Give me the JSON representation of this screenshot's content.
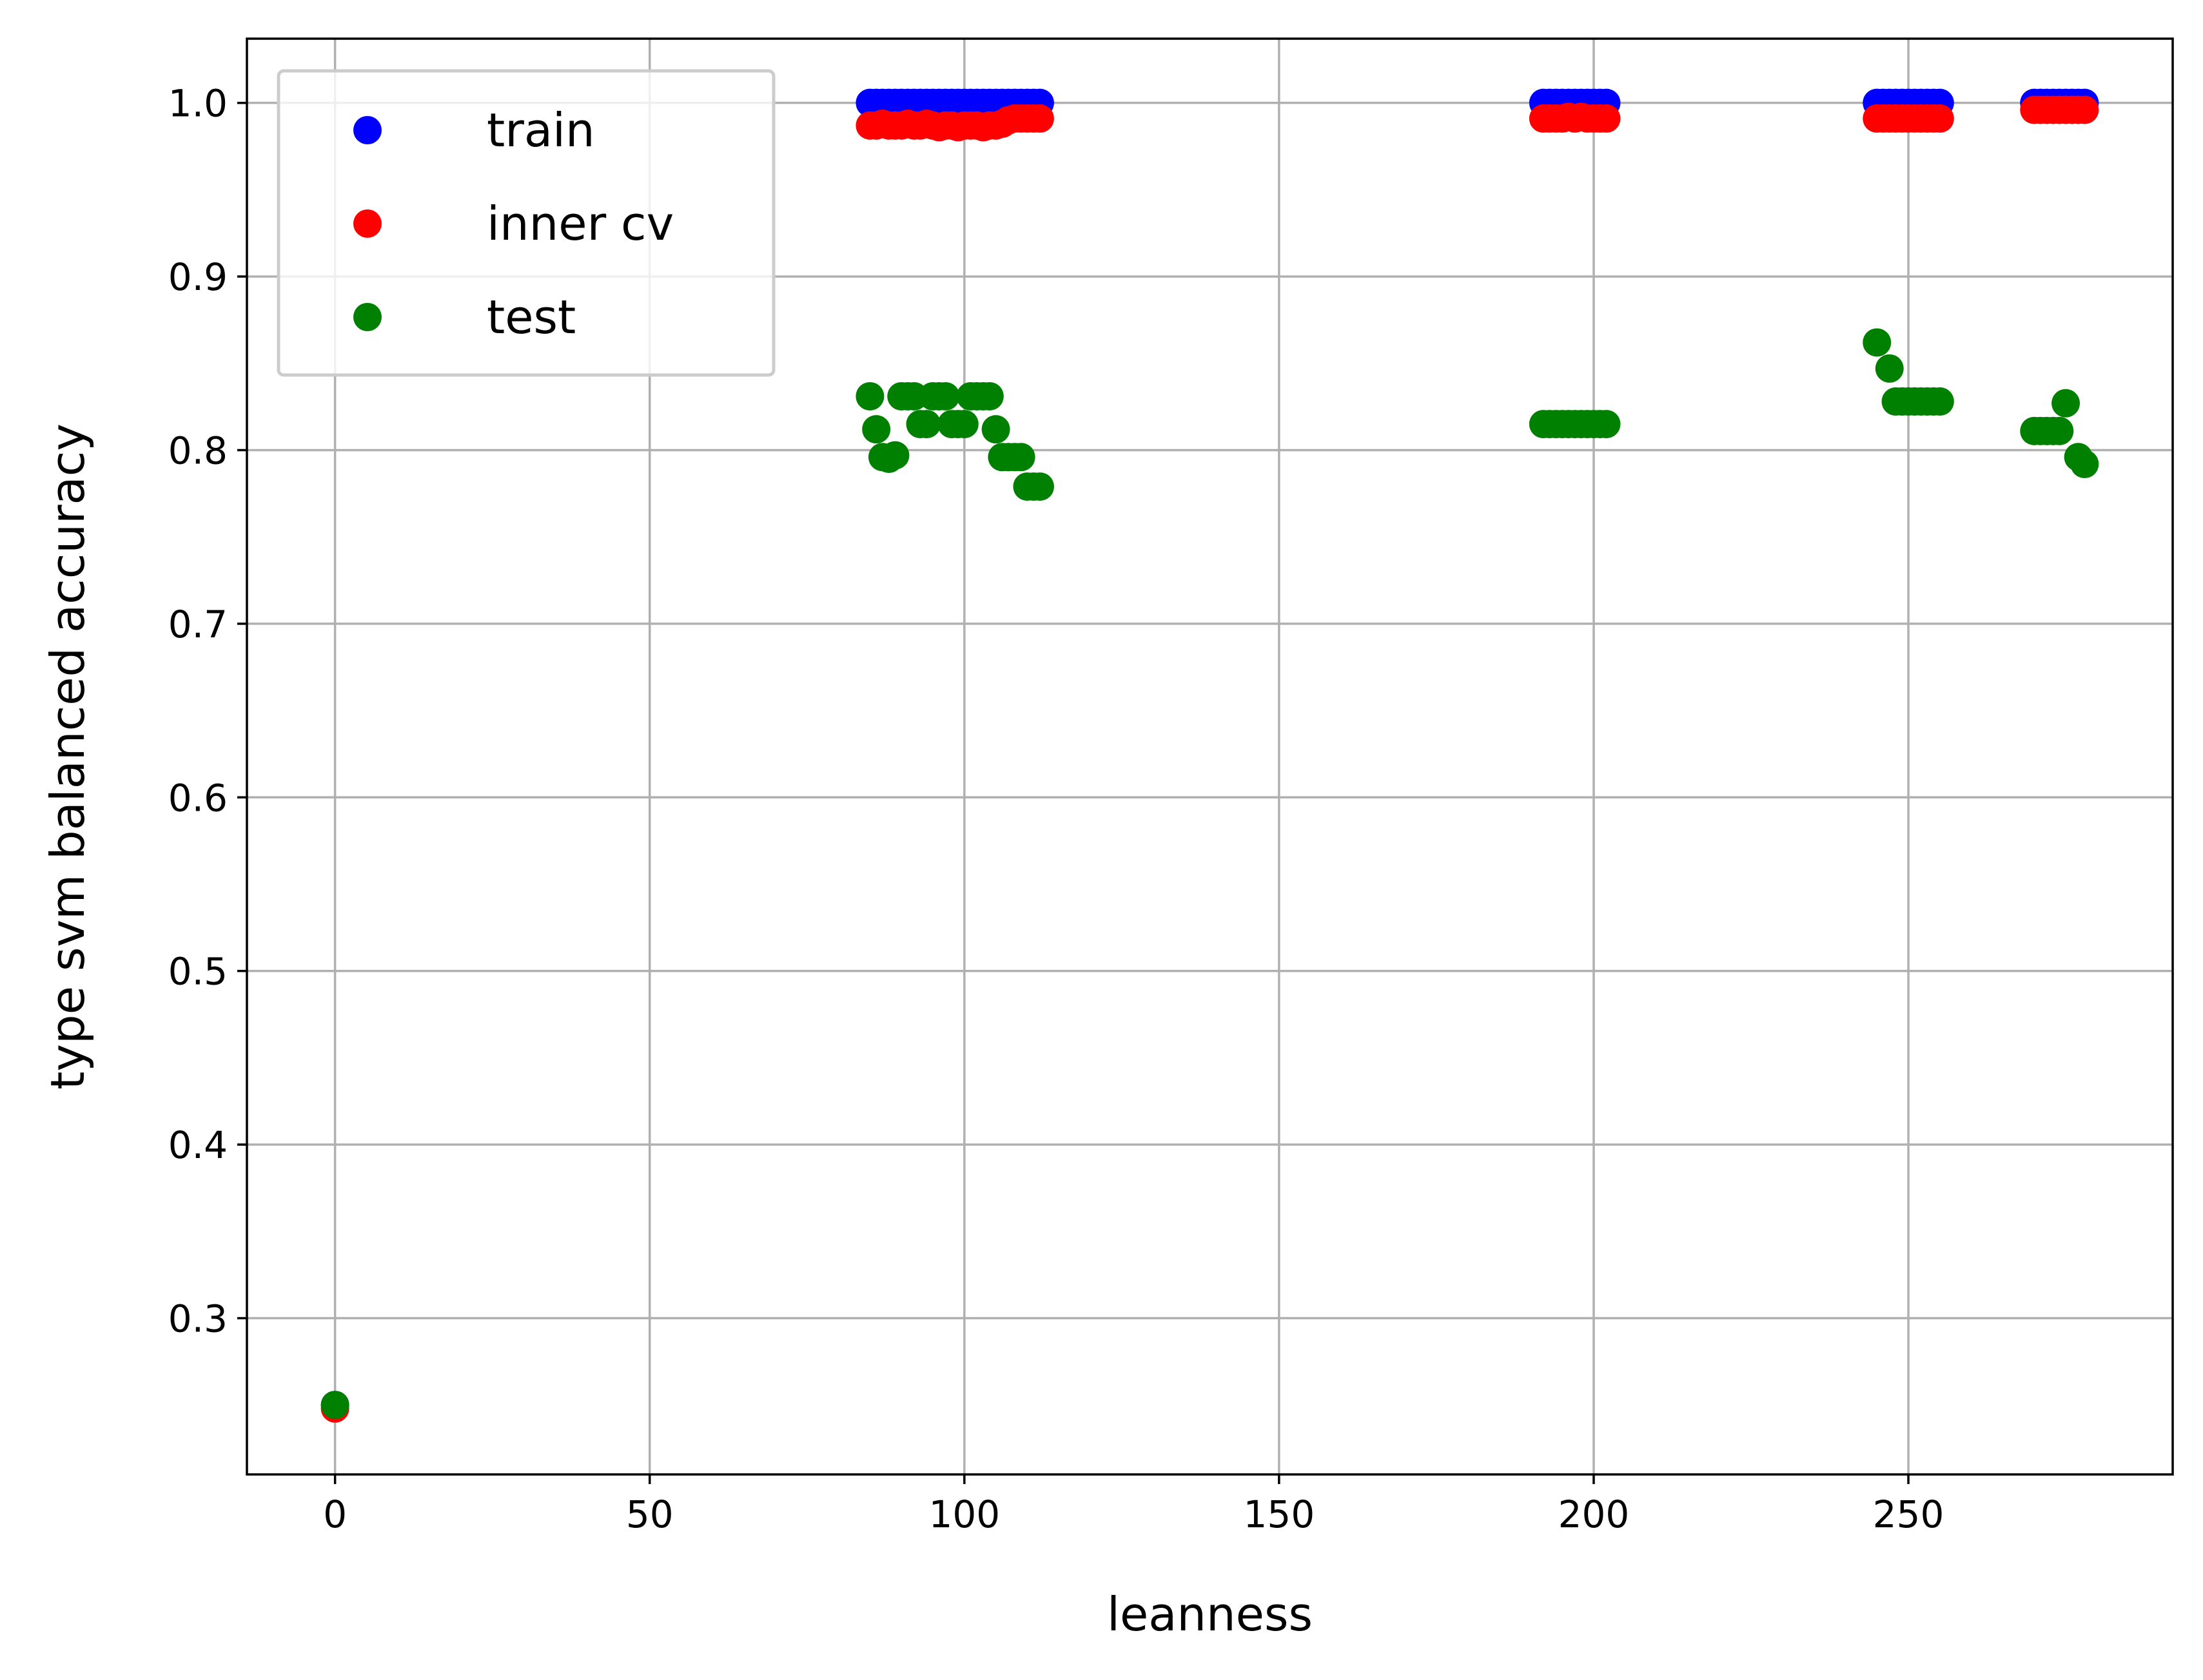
{
  "chart_data": {
    "type": "scatter",
    "xlabel": "leanness",
    "ylabel": "type svm balanced accuracy",
    "xlim": [
      -14,
      292
    ],
    "ylim": [
      0.21,
      1.037
    ],
    "xticks": [
      0,
      50,
      100,
      150,
      200,
      250
    ],
    "xtick_labels": [
      "0",
      "50",
      "100",
      "150",
      "200",
      "250"
    ],
    "yticks": [
      0.3,
      0.4,
      0.5,
      0.6,
      0.7,
      0.8,
      0.9,
      1.0
    ],
    "ytick_labels": [
      "0.3",
      "0.4",
      "0.5",
      "0.6",
      "0.7",
      "0.8",
      "0.9",
      "1.0"
    ],
    "grid": true,
    "legend_position": "upper-left",
    "series": [
      {
        "name": "train",
        "color": "#0000ff",
        "points": [
          [
            0,
            0.25
          ],
          [
            85,
            1.0
          ],
          [
            86,
            1.0
          ],
          [
            87,
            1.0
          ],
          [
            88,
            1.0
          ],
          [
            89,
            1.0
          ],
          [
            90,
            1.0
          ],
          [
            91,
            1.0
          ],
          [
            92,
            1.0
          ],
          [
            93,
            1.0
          ],
          [
            94,
            1.0
          ],
          [
            95,
            1.0
          ],
          [
            96,
            1.0
          ],
          [
            97,
            1.0
          ],
          [
            98,
            1.0
          ],
          [
            99,
            1.0
          ],
          [
            100,
            1.0
          ],
          [
            101,
            1.0
          ],
          [
            102,
            1.0
          ],
          [
            103,
            1.0
          ],
          [
            104,
            1.0
          ],
          [
            105,
            1.0
          ],
          [
            106,
            1.0
          ],
          [
            107,
            1.0
          ],
          [
            108,
            1.0
          ],
          [
            109,
            1.0
          ],
          [
            110,
            1.0
          ],
          [
            111,
            1.0
          ],
          [
            112,
            1.0
          ],
          [
            192,
            1.0
          ],
          [
            193,
            1.0
          ],
          [
            194,
            1.0
          ],
          [
            195,
            1.0
          ],
          [
            196,
            1.0
          ],
          [
            197,
            1.0
          ],
          [
            198,
            1.0
          ],
          [
            199,
            1.0
          ],
          [
            200,
            1.0
          ],
          [
            201,
            1.0
          ],
          [
            202,
            1.0
          ],
          [
            245,
            1.0
          ],
          [
            246,
            1.0
          ],
          [
            247,
            1.0
          ],
          [
            248,
            1.0
          ],
          [
            249,
            1.0
          ],
          [
            250,
            1.0
          ],
          [
            251,
            1.0
          ],
          [
            252,
            1.0
          ],
          [
            253,
            1.0
          ],
          [
            254,
            1.0
          ],
          [
            255,
            1.0
          ],
          [
            270,
            1.0
          ],
          [
            271,
            1.0
          ],
          [
            272,
            1.0
          ],
          [
            273,
            1.0
          ],
          [
            274,
            1.0
          ],
          [
            275,
            1.0
          ],
          [
            276,
            1.0
          ],
          [
            277,
            1.0
          ],
          [
            278,
            1.0
          ]
        ]
      },
      {
        "name": "inner cv",
        "color": "#ff0000",
        "points": [
          [
            0,
            0.248
          ],
          [
            85,
            0.987
          ],
          [
            86,
            0.987
          ],
          [
            87,
            0.988
          ],
          [
            88,
            0.987
          ],
          [
            89,
            0.987
          ],
          [
            90,
            0.987
          ],
          [
            91,
            0.988
          ],
          [
            92,
            0.987
          ],
          [
            93,
            0.987
          ],
          [
            94,
            0.988
          ],
          [
            95,
            0.987
          ],
          [
            96,
            0.986
          ],
          [
            97,
            0.987
          ],
          [
            98,
            0.987
          ],
          [
            99,
            0.986
          ],
          [
            100,
            0.987
          ],
          [
            101,
            0.987
          ],
          [
            102,
            0.987
          ],
          [
            103,
            0.986
          ],
          [
            104,
            0.987
          ],
          [
            105,
            0.987
          ],
          [
            106,
            0.988
          ],
          [
            107,
            0.99
          ],
          [
            108,
            0.991
          ],
          [
            109,
            0.991
          ],
          [
            110,
            0.991
          ],
          [
            111,
            0.991
          ],
          [
            112,
            0.991
          ],
          [
            192,
            0.991
          ],
          [
            193,
            0.991
          ],
          [
            194,
            0.991
          ],
          [
            195,
            0.991
          ],
          [
            196,
            0.992
          ],
          [
            197,
            0.991
          ],
          [
            198,
            0.992
          ],
          [
            199,
            0.991
          ],
          [
            200,
            0.991
          ],
          [
            201,
            0.991
          ],
          [
            202,
            0.991
          ],
          [
            245,
            0.991
          ],
          [
            246,
            0.991
          ],
          [
            247,
            0.991
          ],
          [
            248,
            0.991
          ],
          [
            249,
            0.991
          ],
          [
            250,
            0.991
          ],
          [
            251,
            0.991
          ],
          [
            252,
            0.991
          ],
          [
            253,
            0.991
          ],
          [
            254,
            0.991
          ],
          [
            255,
            0.991
          ],
          [
            270,
            0.996
          ],
          [
            271,
            0.996
          ],
          [
            272,
            0.996
          ],
          [
            273,
            0.996
          ],
          [
            274,
            0.996
          ],
          [
            275,
            0.996
          ],
          [
            276,
            0.996
          ],
          [
            277,
            0.996
          ],
          [
            278,
            0.996
          ]
        ]
      },
      {
        "name": "test",
        "color": "#008000",
        "points": [
          [
            0,
            0.25
          ],
          [
            85,
            0.831
          ],
          [
            86,
            0.812
          ],
          [
            87,
            0.796
          ],
          [
            88,
            0.795
          ],
          [
            89,
            0.797
          ],
          [
            90,
            0.831
          ],
          [
            91,
            0.831
          ],
          [
            92,
            0.831
          ],
          [
            93,
            0.815
          ],
          [
            94,
            0.815
          ],
          [
            95,
            0.831
          ],
          [
            96,
            0.831
          ],
          [
            97,
            0.831
          ],
          [
            98,
            0.815
          ],
          [
            99,
            0.815
          ],
          [
            100,
            0.815
          ],
          [
            101,
            0.831
          ],
          [
            102,
            0.831
          ],
          [
            103,
            0.831
          ],
          [
            104,
            0.831
          ],
          [
            105,
            0.812
          ],
          [
            106,
            0.796
          ],
          [
            107,
            0.796
          ],
          [
            108,
            0.796
          ],
          [
            109,
            0.796
          ],
          [
            110,
            0.779
          ],
          [
            111,
            0.779
          ],
          [
            112,
            0.779
          ],
          [
            192,
            0.815
          ],
          [
            193,
            0.815
          ],
          [
            194,
            0.815
          ],
          [
            195,
            0.815
          ],
          [
            196,
            0.815
          ],
          [
            197,
            0.815
          ],
          [
            198,
            0.815
          ],
          [
            199,
            0.815
          ],
          [
            200,
            0.815
          ],
          [
            201,
            0.815
          ],
          [
            202,
            0.815
          ],
          [
            245,
            0.862
          ],
          [
            247,
            0.847
          ],
          [
            248,
            0.828
          ],
          [
            249,
            0.828
          ],
          [
            250,
            0.828
          ],
          [
            251,
            0.828
          ],
          [
            252,
            0.828
          ],
          [
            253,
            0.828
          ],
          [
            254,
            0.828
          ],
          [
            255,
            0.828
          ],
          [
            270,
            0.811
          ],
          [
            271,
            0.811
          ],
          [
            272,
            0.811
          ],
          [
            273,
            0.811
          ],
          [
            274,
            0.811
          ],
          [
            275,
            0.827
          ],
          [
            277,
            0.796
          ],
          [
            278,
            0.792
          ]
        ]
      }
    ]
  }
}
